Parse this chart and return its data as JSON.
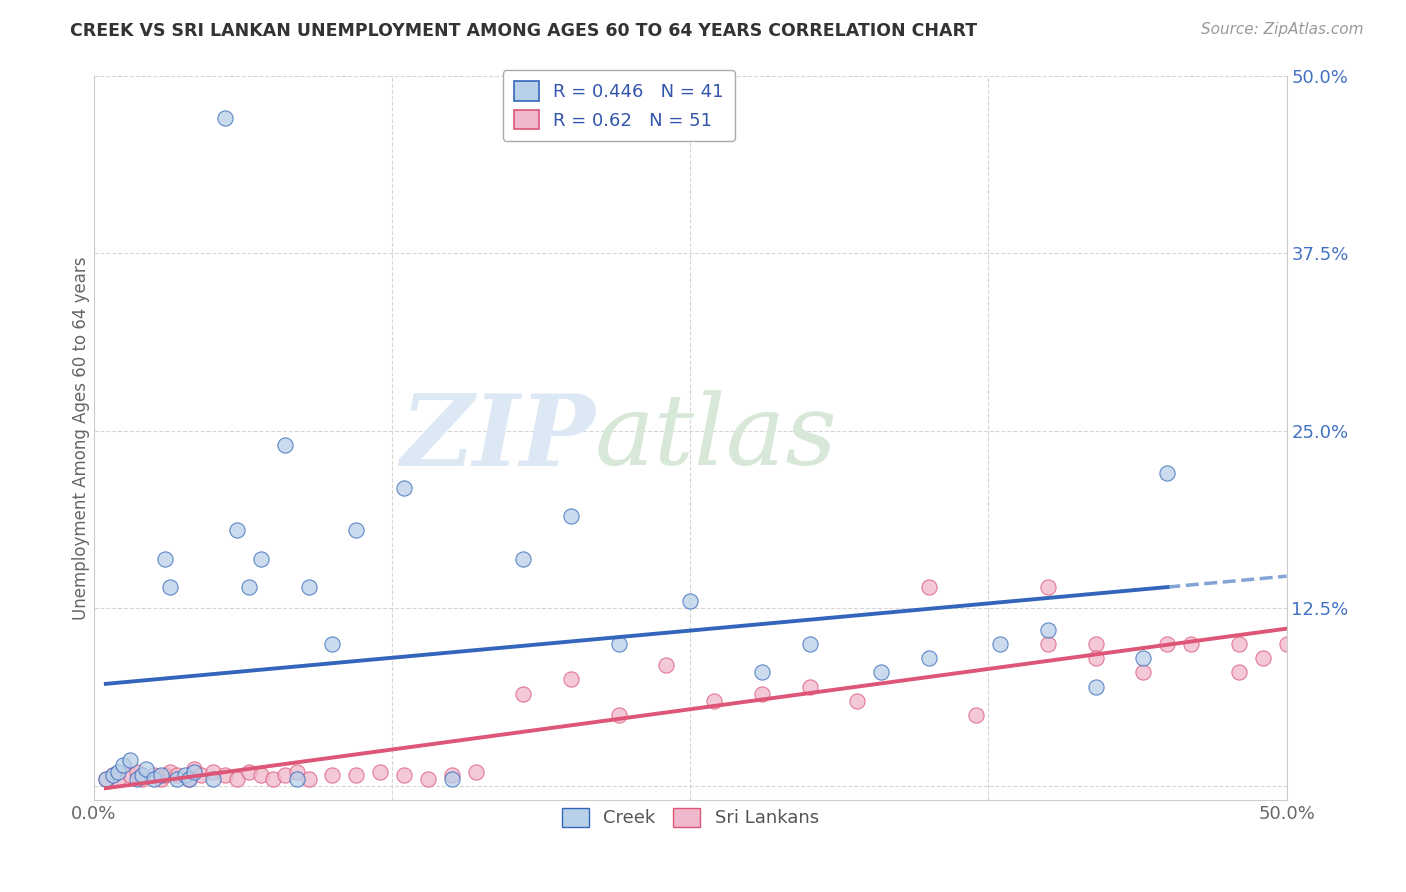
{
  "title": "CREEK VS SRI LANKAN UNEMPLOYMENT AMONG AGES 60 TO 64 YEARS CORRELATION CHART",
  "source": "Source: ZipAtlas.com",
  "ylabel": "Unemployment Among Ages 60 to 64 years",
  "xlim": [
    0.0,
    0.5
  ],
  "ylim": [
    -0.01,
    0.5
  ],
  "creek_R": 0.446,
  "creek_N": 41,
  "srilankan_R": 0.62,
  "srilankan_N": 51,
  "creek_color": "#b8d0e8",
  "creek_line_color": "#3366bb",
  "srilankan_color": "#f0b8cc",
  "srilankan_line_color": "#dd5577",
  "background_color": "#ffffff",
  "creek_scatter_x": [
    0.005,
    0.008,
    0.01,
    0.012,
    0.015,
    0.018,
    0.02,
    0.022,
    0.025,
    0.028,
    0.03,
    0.032,
    0.035,
    0.038,
    0.04,
    0.042,
    0.05,
    0.055,
    0.06,
    0.065,
    0.07,
    0.08,
    0.085,
    0.09,
    0.1,
    0.11,
    0.13,
    0.15,
    0.18,
    0.2,
    0.22,
    0.25,
    0.28,
    0.3,
    0.33,
    0.35,
    0.38,
    0.4,
    0.42,
    0.44,
    0.45
  ],
  "creek_scatter_y": [
    0.005,
    0.008,
    0.01,
    0.015,
    0.018,
    0.005,
    0.008,
    0.012,
    0.005,
    0.008,
    0.16,
    0.14,
    0.005,
    0.008,
    0.005,
    0.01,
    0.005,
    0.47,
    0.18,
    0.14,
    0.16,
    0.24,
    0.005,
    0.14,
    0.1,
    0.18,
    0.21,
    0.005,
    0.16,
    0.19,
    0.1,
    0.13,
    0.08,
    0.1,
    0.08,
    0.09,
    0.1,
    0.11,
    0.07,
    0.09,
    0.22
  ],
  "srilanka_scatter_x": [
    0.005,
    0.008,
    0.01,
    0.015,
    0.018,
    0.02,
    0.025,
    0.028,
    0.03,
    0.032,
    0.035,
    0.04,
    0.042,
    0.045,
    0.05,
    0.055,
    0.06,
    0.065,
    0.07,
    0.075,
    0.08,
    0.085,
    0.09,
    0.1,
    0.11,
    0.12,
    0.13,
    0.14,
    0.15,
    0.16,
    0.18,
    0.2,
    0.22,
    0.24,
    0.26,
    0.28,
    0.3,
    0.32,
    0.35,
    0.37,
    0.4,
    0.42,
    0.44,
    0.46,
    0.48,
    0.49,
    0.5,
    0.48,
    0.45,
    0.42,
    0.4
  ],
  "srilanka_scatter_y": [
    0.005,
    0.008,
    0.005,
    0.008,
    0.01,
    0.005,
    0.008,
    0.005,
    0.008,
    0.01,
    0.008,
    0.005,
    0.012,
    0.008,
    0.01,
    0.008,
    0.005,
    0.01,
    0.008,
    0.005,
    0.008,
    0.01,
    0.005,
    0.008,
    0.008,
    0.01,
    0.008,
    0.005,
    0.008,
    0.01,
    0.065,
    0.075,
    0.05,
    0.085,
    0.06,
    0.065,
    0.07,
    0.06,
    0.14,
    0.05,
    0.14,
    0.1,
    0.08,
    0.1,
    0.1,
    0.09,
    0.1,
    0.08,
    0.1,
    0.09,
    0.1
  ]
}
